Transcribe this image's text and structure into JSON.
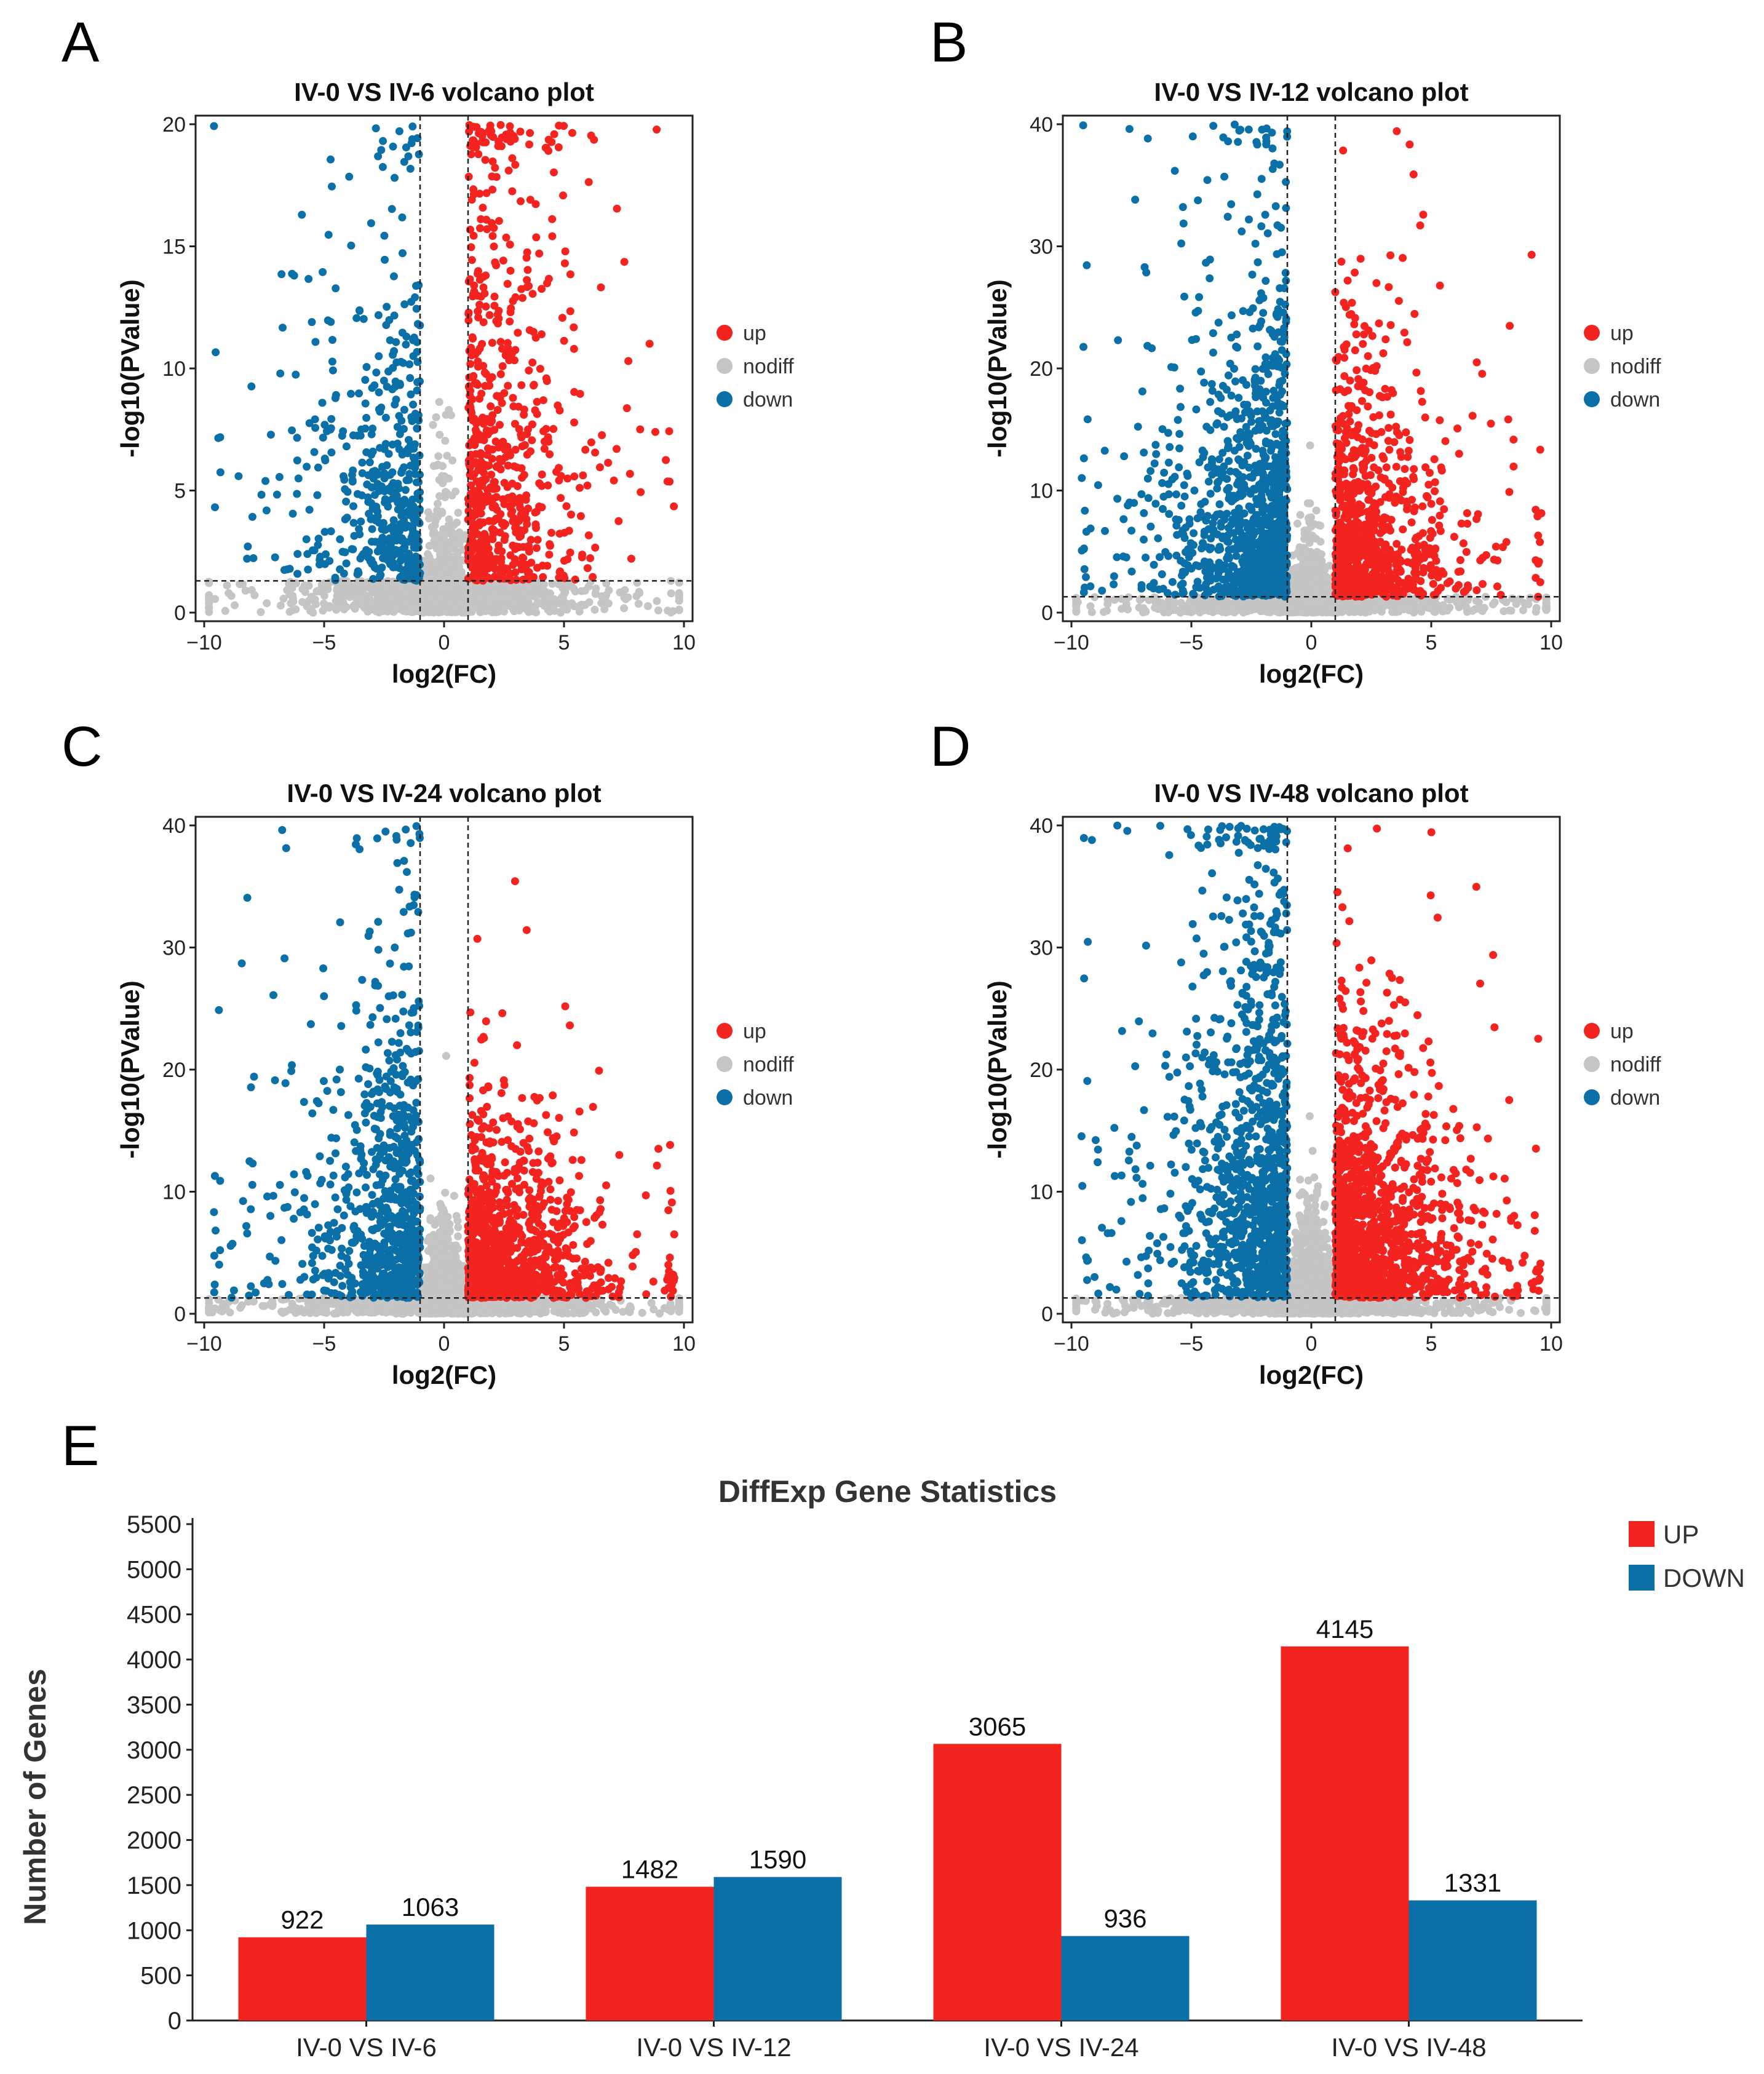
{
  "panels": [
    {
      "letter": "A",
      "title": "IV-0 VS IV-6 volcano plot",
      "xlabel": "log2(FC)",
      "ylabel": "-log10(PValue)",
      "xlim": [
        -10,
        10
      ],
      "ylim": [
        0,
        20
      ],
      "xticks": [
        -10,
        -5,
        0,
        5,
        10
      ],
      "yticks": [
        0,
        5,
        10,
        15,
        20
      ],
      "fc_threshold": [
        -1,
        1
      ],
      "p_threshold": 1.3,
      "seed": 11,
      "legend": [
        "up",
        "nodiff",
        "down"
      ],
      "counts": {
        "up": 700,
        "down": 500,
        "nodiff": 1500
      },
      "decay": {
        "up": 0.16,
        "down": 0.22,
        "nodiff": 0.7
      }
    },
    {
      "letter": "B",
      "title": "IV-0 VS IV-12 volcano plot",
      "xlabel": "log2(FC)",
      "ylabel": "-log10(PValue)",
      "xlim": [
        -10,
        10
      ],
      "ylim": [
        0,
        40
      ],
      "xticks": [
        -10,
        -5,
        0,
        5,
        10
      ],
      "yticks": [
        0,
        10,
        20,
        30,
        40
      ],
      "fc_threshold": [
        -1,
        1
      ],
      "p_threshold": 1.3,
      "seed": 23,
      "legend": [
        "up",
        "nodiff",
        "down"
      ],
      "counts": {
        "up": 900,
        "down": 1100,
        "nodiff": 1700
      },
      "decay": {
        "up": 0.15,
        "down": 0.11,
        "nodiff": 0.6
      }
    },
    {
      "letter": "C",
      "title": "IV-0 VS IV-24 volcano plot",
      "xlabel": "log2(FC)",
      "ylabel": "-log10(PValue)",
      "xlim": [
        -10,
        10
      ],
      "ylim": [
        0,
        40
      ],
      "xticks": [
        -10,
        -5,
        0,
        5,
        10
      ],
      "yticks": [
        0,
        10,
        20,
        30,
        40
      ],
      "fc_threshold": [
        -1,
        1
      ],
      "p_threshold": 1.3,
      "seed": 37,
      "legend": [
        "up",
        "nodiff",
        "down"
      ],
      "counts": {
        "up": 1100,
        "down": 800,
        "nodiff": 1700
      },
      "decay": {
        "up": 0.22,
        "down": 0.12,
        "nodiff": 0.45
      }
    },
    {
      "letter": "D",
      "title": "IV-0 VS IV-48 volcano plot",
      "xlabel": "log2(FC)",
      "ylabel": "-log10(PValue)",
      "xlim": [
        -10,
        10
      ],
      "ylim": [
        0,
        40
      ],
      "xticks": [
        -10,
        -5,
        0,
        5,
        10
      ],
      "yticks": [
        0,
        10,
        20,
        30,
        40
      ],
      "fc_threshold": [
        -1,
        1
      ],
      "p_threshold": 1.3,
      "seed": 53,
      "legend": [
        "up",
        "nodiff",
        "down"
      ],
      "counts": {
        "up": 1400,
        "down": 1100,
        "nodiff": 1800
      },
      "decay": {
        "up": 0.17,
        "down": 0.08,
        "nodiff": 0.35
      }
    }
  ],
  "colors": {
    "up": "#f32320",
    "nodiff": "#c5c5c5",
    "down": "#0a70a7",
    "frame": "#222222"
  },
  "chart_data": [
    {
      "type": "scatter",
      "title": "IV-0 VS IV-6 volcano plot",
      "xlabel": "log2(FC)",
      "ylabel": "-log10(PValue)",
      "xlim": [
        -10,
        10
      ],
      "ylim": [
        0,
        20
      ],
      "series": [
        "up",
        "nodiff",
        "down"
      ]
    },
    {
      "type": "scatter",
      "title": "IV-0 VS IV-12 volcano plot",
      "xlabel": "log2(FC)",
      "ylabel": "-log10(PValue)",
      "xlim": [
        -10,
        10
      ],
      "ylim": [
        0,
        40
      ],
      "series": [
        "up",
        "nodiff",
        "down"
      ]
    },
    {
      "type": "scatter",
      "title": "IV-0 VS IV-24 volcano plot",
      "xlabel": "log2(FC)",
      "ylabel": "-log10(PValue)",
      "xlim": [
        -10,
        10
      ],
      "ylim": [
        0,
        40
      ],
      "series": [
        "up",
        "nodiff",
        "down"
      ]
    },
    {
      "type": "scatter",
      "title": "IV-0 VS IV-48 volcano plot",
      "xlabel": "log2(FC)",
      "ylabel": "-log10(PValue)",
      "xlim": [
        -10,
        10
      ],
      "ylim": [
        0,
        40
      ],
      "series": [
        "up",
        "nodiff",
        "down"
      ]
    },
    {
      "type": "bar",
      "letter": "E",
      "title": "DiffExp Gene Statistics",
      "ylabel": "Number of Genes",
      "xlabel": "",
      "ylim": [
        0,
        5500
      ],
      "yticks": [
        0,
        500,
        1000,
        1500,
        2000,
        2500,
        3000,
        3500,
        4000,
        4500,
        5000,
        5500
      ],
      "categories": [
        "IV-0 VS IV-6",
        "IV-0 VS IV-12",
        "IV-0 VS IV-24",
        "IV-0 VS IV-48"
      ],
      "series": [
        {
          "name": "UP",
          "values": [
            922,
            1482,
            3065,
            4145
          ]
        },
        {
          "name": "DOWN",
          "values": [
            1063,
            1590,
            936,
            1331
          ]
        }
      ],
      "legend_position": "top-right"
    }
  ]
}
